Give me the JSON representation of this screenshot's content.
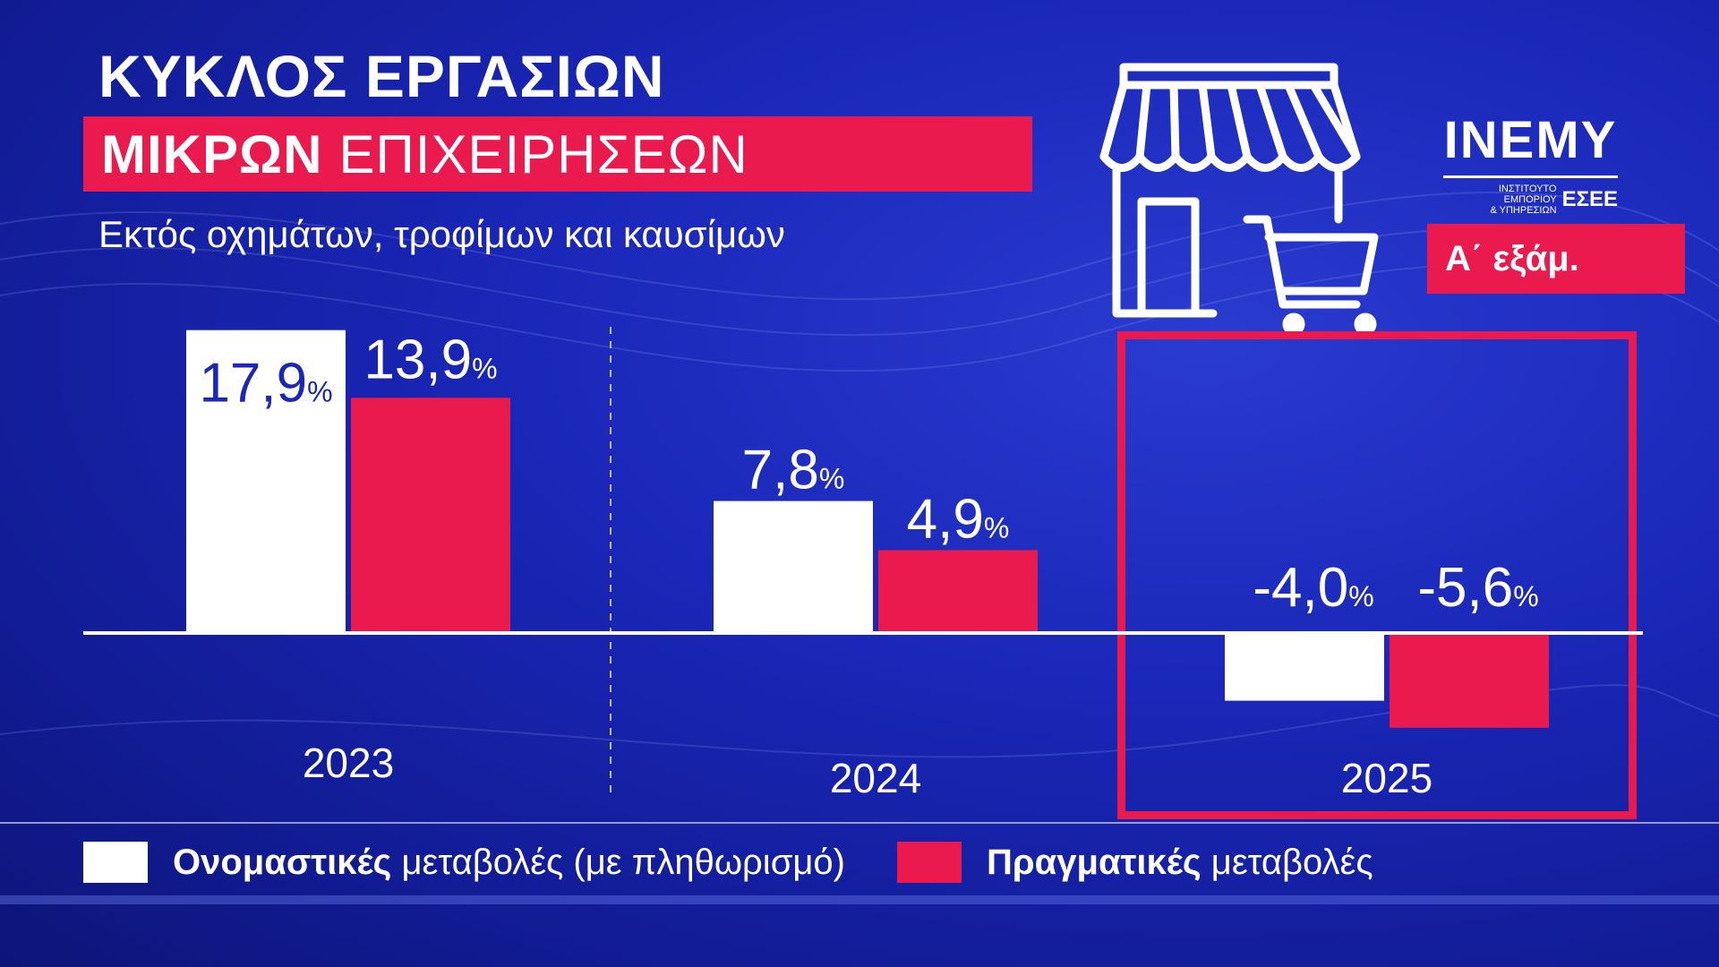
{
  "header": {
    "title_line1": "ΚΥΚΛΟΣ ΕΡΓΑΣΙΩΝ",
    "title_line2_bold": "ΜΙΚΡΩΝ",
    "title_line2_light": "ΕΠΙΧΕΙΡΗΣΕΩΝ",
    "subtitle": "Εκτός οχημάτων, τροφίμων και καυσίμων"
  },
  "logo": {
    "name": "INEMY",
    "small_line1": "ΙΝΣΤΙΤΟΥΤΟ ΕΜΠΟΡΙΟΥ",
    "small_line2": "& ΥΠΗΡΕΣΙΩΝ",
    "org": "ΕΣΕΕ"
  },
  "period_badge": "Α΄ εξάμ.",
  "colors": {
    "nominal": "#ffffff",
    "real": "#ea1a4e",
    "background": "#1a27b8",
    "accent": "#ea1a4e"
  },
  "icons": [
    "storefront-icon",
    "shopping-cart-icon"
  ],
  "chart_data": {
    "type": "bar",
    "categories": [
      "2023",
      "2024",
      "2025"
    ],
    "series": [
      {
        "name": "Ονομαστικές μεταβολές (με πληθωρισμό)",
        "values": [
          17.9,
          7.8,
          -4.0
        ],
        "labels": [
          "17,9",
          "7,8",
          "-4,0"
        ]
      },
      {
        "name": "Πραγματικές μεταβολές",
        "values": [
          13.9,
          4.9,
          -5.6
        ],
        "labels": [
          "13,9",
          "4,9",
          "-5,6"
        ]
      }
    ],
    "unit": "%",
    "ylim": [
      -6,
      19
    ],
    "highlight_category": "2025",
    "grid": false
  },
  "legend": {
    "nominal_bold": "Ονομαστικές",
    "nominal_rest": "μεταβολές (με πληθωρισμό)",
    "real_bold": "Πραγματικές",
    "real_rest": "μεταβολές"
  }
}
